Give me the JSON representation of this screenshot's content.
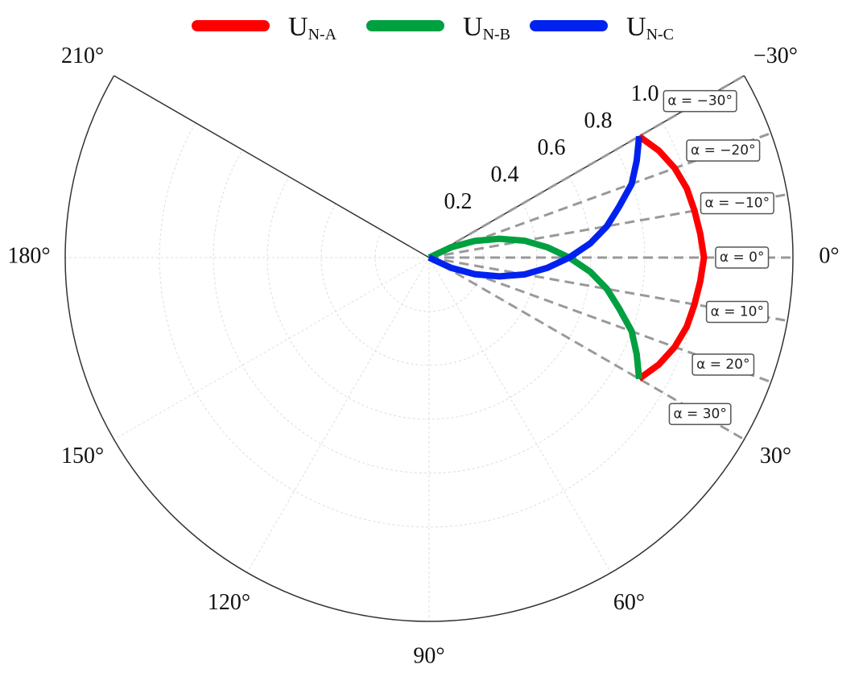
{
  "chart_data": {
    "type": "polar",
    "theta": [
      -30,
      -25,
      -20,
      -15,
      -10,
      -5,
      0,
      5,
      10,
      15,
      20,
      25,
      30
    ],
    "series": [
      {
        "name": "UN-A",
        "color": "#ff0000",
        "values": [
          0.9,
          0.94,
          0.97,
          0.99,
          1.0,
          1.01,
          1.02,
          1.01,
          1.0,
          0.99,
          0.97,
          0.94,
          0.9
        ]
      },
      {
        "name": "UN-B",
        "color": "#00a040",
        "values": [
          0,
          0.09,
          0.18,
          0.27,
          0.36,
          0.44,
          0.52,
          0.6,
          0.67,
          0.73,
          0.8,
          0.85,
          0.9
        ]
      },
      {
        "name": "UN-C",
        "color": "#0022ee",
        "values": [
          0.9,
          0.85,
          0.8,
          0.73,
          0.67,
          0.6,
          0.52,
          0.44,
          0.36,
          0.27,
          0.18,
          0.09,
          0
        ]
      }
    ],
    "rlim": [
      0,
      1.35
    ],
    "rticks": [
      0.2,
      0.4,
      0.6,
      0.8,
      {
        "value": 1,
        "label": "1.0"
      }
    ],
    "thetalim": [
      -30,
      210
    ],
    "theta_direction": "clockwise",
    "thetaticks": [
      {
        "value": -30,
        "label": "−30°"
      },
      {
        "value": 0,
        "label": "0°"
      },
      {
        "value": 30,
        "label": "30°"
      },
      {
        "value": 60,
        "label": "60°"
      },
      {
        "value": 90,
        "label": "90°"
      },
      {
        "value": 120,
        "label": "120°"
      },
      {
        "value": 150,
        "label": "150°"
      },
      {
        "value": 180,
        "label": "180°"
      },
      {
        "value": 210,
        "label": "210°"
      }
    ],
    "annotations": [
      {
        "text": "α = −30°",
        "theta": -30
      },
      {
        "text": "α = −20°",
        "theta": -20
      },
      {
        "text": "α = −10°",
        "theta": -10
      },
      {
        "text": "α = 0°",
        "theta": 0
      },
      {
        "text": "α = 10°",
        "theta": 10
      },
      {
        "text": "α = 20°",
        "theta": 20
      },
      {
        "text": "α = 30°",
        "theta": 30
      }
    ],
    "grid": true,
    "legend": "top"
  }
}
